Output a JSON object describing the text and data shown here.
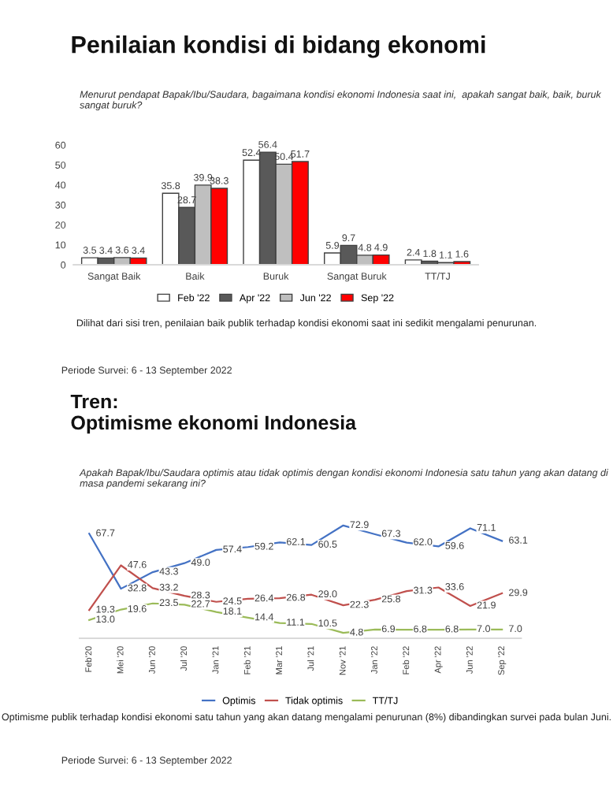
{
  "chart_data": [
    {
      "type": "bar",
      "title": "Penilaian kondisi di bidang ekonomi",
      "subtitle": "Menurut pendapat Bapak/Ibu/Saudara, bagaimana kondisi ekonomi Indonesia saat ini,  apakah sangat baik, baik, buruk sangat buruk?",
      "categories": [
        "Sangat Baik",
        "Baik",
        "Buruk",
        "Sangat Buruk",
        "TT/TJ"
      ],
      "series": [
        {
          "name": "Feb '22",
          "color": "#ffffff",
          "values": [
            3.5,
            35.8,
            52.4,
            5.9,
            2.4
          ]
        },
        {
          "name": "Apr '22",
          "color": "#595959",
          "values": [
            3.4,
            28.7,
            56.4,
            9.7,
            1.8
          ]
        },
        {
          "name": "Jun '22",
          "color": "#bfbfbf",
          "values": [
            3.6,
            39.9,
            50.4,
            4.8,
            1.1
          ]
        },
        {
          "name": "Sep '22",
          "color": "#ff0000",
          "values": [
            3.4,
            38.3,
            51.7,
            4.9,
            1.6
          ]
        }
      ],
      "ylim": [
        0,
        60
      ],
      "yticks": [
        0,
        10,
        20,
        30,
        40,
        50,
        60
      ],
      "data_labels": true,
      "legend": "bottom",
      "grid": false,
      "annotations": [
        "Dilihat dari sisi tren, penilaian baik publik terhadap kondisi ekonomi saat ini sedikit mengalami penurunan.",
        "Periode Survei: 6 - 13 September 2022"
      ]
    },
    {
      "type": "line",
      "title": "Tren:\nOptimisme ekonomi Indonesia",
      "subtitle": "Apakah Bapak/Ibu/Saudara optimis atau tidak optimis dengan kondisi ekonomi Indonesia satu tahun yang akan datang di masa pandemi sekarang ini?",
      "categories": [
        "Feb'20",
        "Mei '20",
        "Jun '20",
        "Jul '20",
        "Jan '21",
        "Feb '21",
        "Mar '21",
        "Jul '21",
        "Nov '21",
        "Jan '22",
        "Feb '22",
        "Apr '22",
        "Jun '22",
        "Sep '22"
      ],
      "series": [
        {
          "name": "Optimis",
          "color": "#4472c4",
          "values": [
            67.7,
            32.8,
            43.3,
            49.0,
            57.4,
            59.2,
            62.1,
            60.5,
            72.9,
            67.3,
            62.0,
            59.6,
            71.1,
            63.1
          ],
          "value_labels": [
            "67.7",
            "32.8",
            "43.3",
            "49.0",
            "57.4",
            "59.2",
            "62.1",
            "60.5",
            "72.9",
            "67.3",
            "62.0",
            "59.6",
            "71.1",
            "63.1"
          ]
        },
        {
          "name": "Tidak optimis",
          "color": "#c0504d",
          "values": [
            19.3,
            47.6,
            33.2,
            28.3,
            24.5,
            26.4,
            26.8,
            29.0,
            22.3,
            25.8,
            31.3,
            33.6,
            21.9,
            29.9
          ],
          "value_labels": [
            "19.3",
            "47.6",
            "33.2",
            "28.3",
            "24.5",
            "26.4",
            "26.8",
            "29.0",
            "22.3",
            "25.8",
            "31.3",
            "33.6",
            "21.9",
            "29.9"
          ]
        },
        {
          "name": "TT/TJ",
          "color": "#9bbb59",
          "values": [
            13.0,
            19.6,
            23.5,
            22.7,
            18.1,
            14.4,
            11.1,
            10.5,
            4.8,
            6.9,
            6.8,
            6.8,
            7.0,
            7.0
          ],
          "value_labels": [
            "13.0",
            "19.6",
            "23.5",
            "22.7",
            "18.1",
            "14.4",
            "11.1",
            "10.5",
            "4.8",
            "6.9",
            "6.8",
            "6.8",
            "7.0",
            "7.0"
          ]
        }
      ],
      "legend": "bottom",
      "grid": false,
      "tick_labels": "x",
      "annotations": [
        "Optimisme publik terhadap kondisi ekonomi satu tahun yang akan datang mengalami penurunan (8%) dibandingkan survei pada bulan Juni.",
        "Periode Survei: 6 - 13 September 2022"
      ]
    }
  ]
}
